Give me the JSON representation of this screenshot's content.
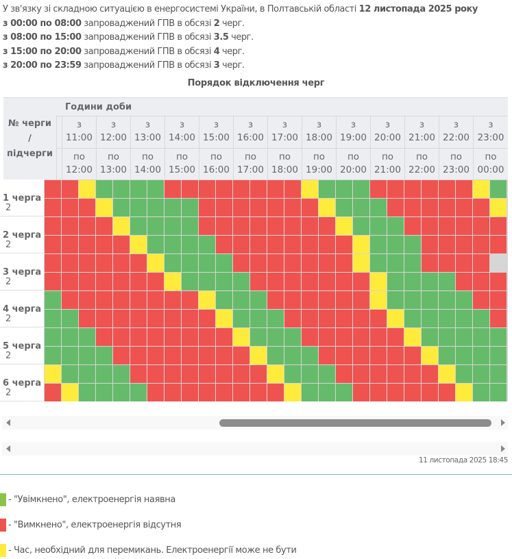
{
  "intro": {
    "line0": {
      "text": "У зв'язку зі складною ситуацією в енергосистемі України, в Полтавській області ",
      "bold": "12 листопада 2025 року"
    },
    "lines": [
      {
        "range": "з 00:00 по 08:00",
        "text": " запроваджений ГПВ в обсязі ",
        "amount": "2",
        "tail": " черг."
      },
      {
        "range": "з 08:00 по 15:00",
        "text": " запроваджений ГПВ в обсязі ",
        "amount": "3.5",
        "tail": " черг."
      },
      {
        "range": "з 15:00 по 20:00",
        "text": " запроваджений ГПВ в обсязі ",
        "amount": "4",
        "tail": " черг."
      },
      {
        "range": "з 20:00 по 23:59",
        "text": " запроваджений ГПВ в обсязі ",
        "amount": "3",
        "tail": " черг."
      }
    ]
  },
  "table": {
    "title": "Порядок відключення черг",
    "queue_header": [
      "№ черги",
      "/",
      "підчерги"
    ],
    "hours_header": "Години доби",
    "hours": [
      {
        "from_label": "з",
        "from": "11:00",
        "to_label": "по",
        "to": "12:00"
      },
      {
        "from_label": "з",
        "from": "12:00",
        "to_label": "по",
        "to": "13:00"
      },
      {
        "from_label": "з",
        "from": "13:00",
        "to_label": "по",
        "to": "14:00"
      },
      {
        "from_label": "з",
        "from": "14:00",
        "to_label": "по",
        "to": "15:00"
      },
      {
        "from_label": "з",
        "from": "15:00",
        "to_label": "по",
        "to": "16:00"
      },
      {
        "from_label": "з",
        "from": "16:00",
        "to_label": "по",
        "to": "17:00"
      },
      {
        "from_label": "з",
        "from": "17:00",
        "to_label": "по",
        "to": "18:00"
      },
      {
        "from_label": "з",
        "from": "18:00",
        "to_label": "по",
        "to": "19:00"
      },
      {
        "from_label": "з",
        "from": "19:00",
        "to_label": "по",
        "to": "20:00"
      },
      {
        "from_label": "з",
        "from": "20:00",
        "to_label": "по",
        "to": "21:00"
      },
      {
        "from_label": "з",
        "from": "21:00",
        "to_label": "по",
        "to": "22:00"
      },
      {
        "from_label": "з",
        "from": "22:00",
        "to_label": "по",
        "to": "23:00"
      },
      {
        "from_label": "з",
        "from": "23:00",
        "to_label": "по",
        "to": "00:00"
      }
    ],
    "queues": [
      {
        "label": "1 черга",
        "sub": "2"
      },
      {
        "label": "2 черга",
        "sub": "2"
      },
      {
        "label": "3 черга",
        "sub": "2"
      },
      {
        "label": "4 черга",
        "sub": "2"
      },
      {
        "label": "5 черга",
        "sub": "2"
      },
      {
        "label": "6 черга",
        "sub": "2"
      }
    ],
    "rows": [
      "RRYGGGGRRRRRRRRYGGGRRRRRRYG",
      "RRRYGGGGGRRRRRRRYGGGRRRRRRY",
      "RRRRYGGGGRRRRRRRRYGGGRRRRRR",
      "RRRRRYGGGGRRRRRRRRYGGGRRRRR",
      "RRRRRRYGGGGRRRRRRRYGGGRRRR",
      "RRRRRRRYGGGGRRRRRRRYGGGGRRR",
      "GRRRRRRRRYGGGRRRRRRYGGGGGRR",
      "GGRRRRRRRRYGGGRRRRRRYGGGGGR",
      "GGGRRRRRRRRYGGGRRRRRRYGGGGG",
      "GGGGRRRRRRRRYGGGRRRRRRYGGGG",
      "YGGGGRRRRRRRRYGGGRRRRRRYGGG",
      "RYGGGGRRRRRRRRYGGGRRRRRRYGG"
    ]
  },
  "colors": {
    "G": "#66bb6a",
    "R": "#ef5350",
    "Y": "#ffeb3b",
    "legend_green": "#8bc34a"
  },
  "timestamp": "11 листопада 2025 18:45",
  "legend": [
    {
      "key": "G",
      "text": "- \"Увімкнено\", електроенергія наявна"
    },
    {
      "key": "R",
      "text": "- \"Вимкнено\", електроенергія відсутня"
    },
    {
      "key": "Y",
      "text": "- Час, необхідний для перемикань. Електроенергії може не бути"
    }
  ]
}
